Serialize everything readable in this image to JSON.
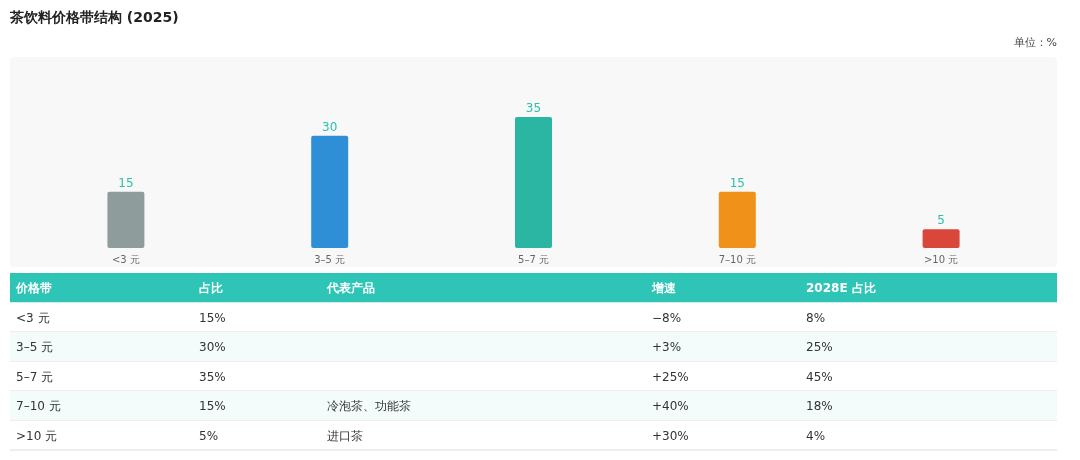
{
  "chart_data": {
    "type": "bar",
    "title": "茶饮料价格带结构 (2025)",
    "subtitle": "单位：%",
    "categories": [
      "<3 元",
      "3–5 元",
      "5–7 元",
      "7–10 元",
      ">10 元"
    ],
    "values": [
      15,
      30,
      35,
      15,
      5
    ],
    "colors": [
      "#8e9c9c",
      "#2f8fd6",
      "#2bb5a3",
      "#f0921a",
      "#d9463a"
    ],
    "data_labels": true,
    "annotations": [
      [
        "价格带",
        "占比",
        "代表产品",
        "增速",
        "2028E 占比"
      ],
      [
        "<3 元",
        "15%",
        "−8%",
        "8%"
      ],
      [
        "3–5 元",
        "30%",
        "+3%",
        "25%"
      ],
      [
        "5–7 元",
        "35%",
        "+25%",
        "45%"
      ],
      [
        "7–10 元",
        "15%",
        "冷泡茶、功能茶",
        "+40%",
        "18%"
      ],
      [
        ">10 元",
        "5%",
        "进口茶",
        "+30%",
        "4%"
      ]
    ]
  }
}
